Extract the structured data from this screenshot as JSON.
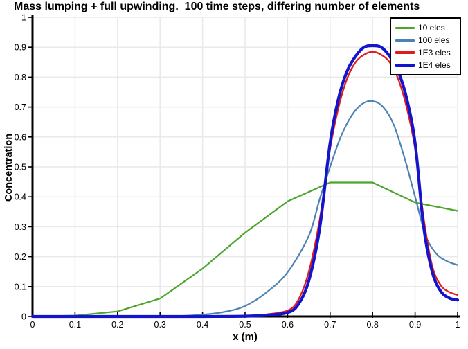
{
  "chart_data": {
    "type": "line",
    "title": "Mass lumping + full upwinding.  100 time steps, differing number of elements",
    "xlabel": "x (m)",
    "ylabel": "Concentration",
    "xlim": [
      0,
      1
    ],
    "ylim": [
      0,
      1
    ],
    "xticks": [
      0,
      0.1,
      0.2,
      0.3,
      0.4,
      0.5,
      0.6,
      0.7,
      0.8,
      0.9,
      1
    ],
    "yticks": [
      0,
      0.1,
      0.2,
      0.3,
      0.4,
      0.5,
      0.6,
      0.7,
      0.8,
      0.9,
      1
    ],
    "x_tick_labels": [
      "0",
      "0.1",
      "0.2",
      "0.3",
      "0.4",
      "0.5",
      "0.6",
      "0.7",
      "0.8",
      "0.9",
      "1"
    ],
    "y_tick_labels": [
      "0",
      "0.1",
      "0.2",
      "0.3",
      "0.4",
      "0.5",
      "0.6",
      "0.7",
      "0.8",
      "0.9",
      "1"
    ],
    "grid": true,
    "grid_color": "#E9E9E9",
    "axis_color": "#000000",
    "background": "#FFFFFF",
    "legend_position": "top-right",
    "series": [
      {
        "name": "10 eles",
        "color": "#4CA52C",
        "width": 2.2,
        "smooth": false,
        "x": [
          0,
          0.1,
          0.2,
          0.3,
          0.4,
          0.5,
          0.6,
          0.7,
          0.8,
          0.9,
          1.0
        ],
        "y": [
          0,
          0.003,
          0.017,
          0.06,
          0.16,
          0.28,
          0.385,
          0.448,
          0.448,
          0.381,
          0.353
        ]
      },
      {
        "name": "100 eles",
        "color": "#4C82B4",
        "width": 2.2,
        "smooth": true,
        "x": [
          0,
          0.2,
          0.3,
          0.35,
          0.4,
          0.45,
          0.5,
          0.55,
          0.6,
          0.65,
          0.675,
          0.7,
          0.725,
          0.75,
          0.775,
          0.8,
          0.825,
          0.85,
          0.875,
          0.9,
          0.925,
          0.95,
          0.975,
          1.0
        ],
        "y": [
          0,
          0,
          0.001,
          0.002,
          0.006,
          0.015,
          0.035,
          0.08,
          0.148,
          0.27,
          0.39,
          0.5,
          0.6,
          0.67,
          0.71,
          0.72,
          0.7,
          0.64,
          0.53,
          0.4,
          0.27,
          0.21,
          0.185,
          0.172
        ]
      },
      {
        "name": "1E3 eles",
        "color": "#E21A1A",
        "width": 2.3,
        "smooth": true,
        "x": [
          0,
          0.3,
          0.4,
          0.5,
          0.55,
          0.6,
          0.625,
          0.65,
          0.675,
          0.7,
          0.72,
          0.74,
          0.76,
          0.78,
          0.8,
          0.82,
          0.84,
          0.86,
          0.88,
          0.9,
          0.92,
          0.94,
          0.96,
          0.98,
          1.0
        ],
        "y": [
          0,
          0,
          0,
          0.002,
          0.007,
          0.02,
          0.055,
          0.15,
          0.32,
          0.56,
          0.7,
          0.795,
          0.85,
          0.875,
          0.885,
          0.875,
          0.85,
          0.795,
          0.7,
          0.56,
          0.33,
          0.17,
          0.105,
          0.082,
          0.072
        ]
      },
      {
        "name": "1E4 eles",
        "color": "#1414CC",
        "width": 4.2,
        "smooth": true,
        "x": [
          0,
          0.3,
          0.4,
          0.5,
          0.55,
          0.6,
          0.625,
          0.65,
          0.675,
          0.7,
          0.72,
          0.74,
          0.76,
          0.78,
          0.8,
          0.82,
          0.84,
          0.86,
          0.88,
          0.9,
          0.92,
          0.94,
          0.96,
          0.98,
          1.0
        ],
        "y": [
          0,
          0,
          0,
          0.001,
          0.004,
          0.013,
          0.04,
          0.12,
          0.29,
          0.58,
          0.73,
          0.82,
          0.87,
          0.9,
          0.905,
          0.9,
          0.87,
          0.82,
          0.73,
          0.58,
          0.3,
          0.15,
          0.085,
          0.062,
          0.055
        ]
      }
    ]
  }
}
